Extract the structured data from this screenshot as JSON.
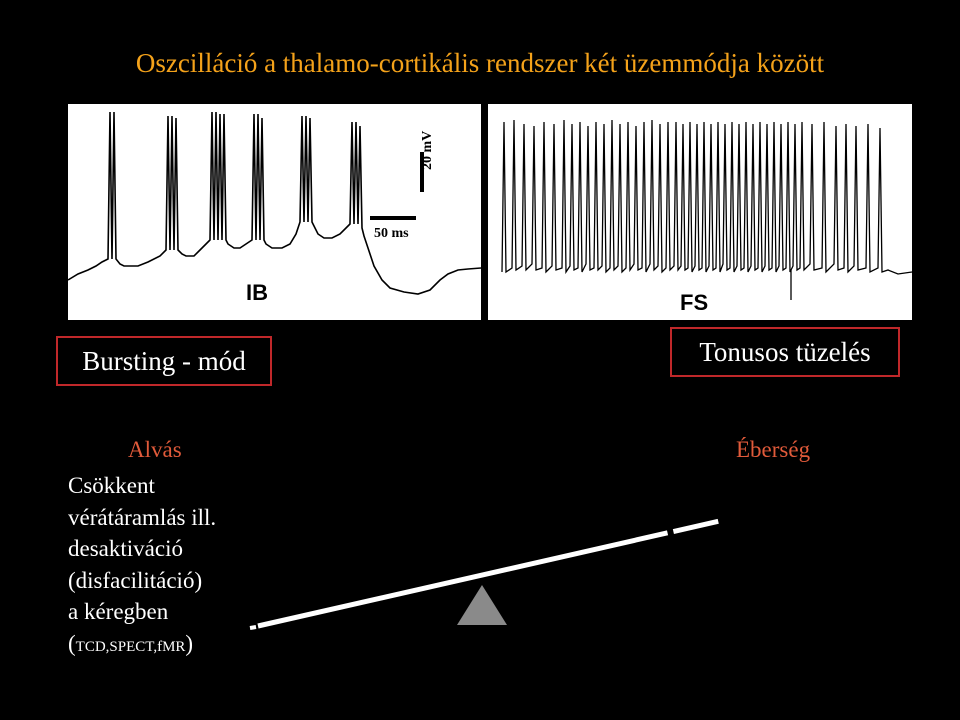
{
  "title": "Oszcilláció a thalamo-cortikális rendszer két üzemmódja között",
  "panels": {
    "ib": {
      "label": "IB",
      "scale_voltage": "20 mV",
      "scale_time": "50 ms"
    },
    "fs": {
      "label": "FS"
    }
  },
  "modes": {
    "left": "Bursting - mód",
    "right": "Tonusos tüzelés"
  },
  "states": {
    "sleep": "Alvás",
    "wake": "Éberség"
  },
  "description": {
    "line1": "Csökkent",
    "line2": "vérátáramlás ill.",
    "line3": "desaktiváció",
    "line4": "(disfacilitáció)",
    "line5": "a kéregben",
    "line6_open": "(",
    "line6_small": "TCD,SPECT,fMR",
    "line6_close": ")"
  },
  "colors": {
    "title": "#f4a21a",
    "accent_red": "#c0282a",
    "state_label": "#e05a3a",
    "fulcrum": "#8a8a8a"
  }
}
